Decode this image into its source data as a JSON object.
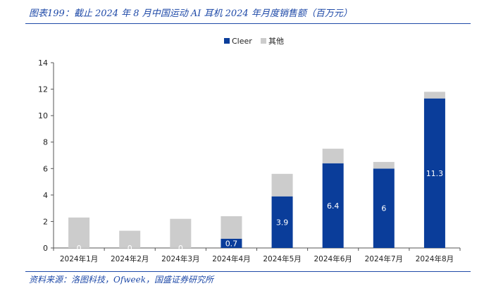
{
  "figure": {
    "caption": "图表199：截止 2024 年 8 月中国运动 AI 耳机 2024 年月度销售额（百万元）",
    "source": "资料来源：洛图科技，Ofweek，国盛证券研究所"
  },
  "colors": {
    "accent": "#1f4aa8",
    "cleer": "#0a3d9a",
    "other": "#cccccc"
  },
  "chart_data": {
    "type": "bar",
    "stacked": true,
    "categories": [
      "2024年1月",
      "2024年2月",
      "2024年3月",
      "2024年4月",
      "2024年5月",
      "2024年6月",
      "2024年7月",
      "2024年8月"
    ],
    "series": [
      {
        "name": "Cleer",
        "color": "#0a3d9a",
        "values": [
          0,
          0,
          0,
          0.7,
          3.9,
          6.4,
          6,
          11.3
        ],
        "labels": [
          "0",
          "0",
          "0",
          "0.7",
          "3.9",
          "6.4",
          "6",
          "11.3"
        ]
      },
      {
        "name": "其他",
        "color": "#cccccc",
        "values": [
          2.3,
          1.3,
          2.2,
          1.7,
          1.7,
          1.1,
          0.5,
          0.5
        ]
      }
    ],
    "ylim": [
      0,
      14
    ],
    "yticks": [
      "0",
      "2",
      "4",
      "6",
      "8",
      "10",
      "12",
      "14"
    ],
    "legend_position": "top-center",
    "grid": false
  }
}
